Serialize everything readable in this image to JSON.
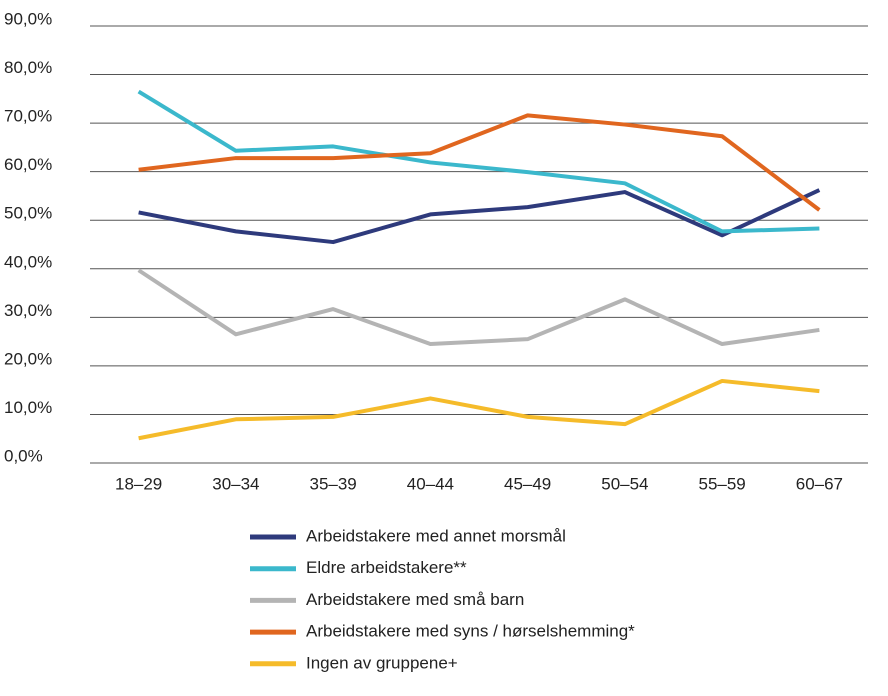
{
  "chart_data": {
    "type": "line",
    "categories": [
      "18–29",
      "30–34",
      "35–39",
      "40–44",
      "45–49",
      "50–54",
      "55–59",
      "60–67"
    ],
    "series": [
      {
        "name": "Arbeidstakere med annet morsmål",
        "color": "#2e3a7c",
        "values": [
          51.6,
          47.7,
          45.5,
          51.2,
          52.7,
          55.8,
          46.9,
          56.2
        ]
      },
      {
        "name": "Eldre arbeidstakere**",
        "color": "#3bb8cc",
        "values": [
          76.5,
          64.3,
          65.2,
          61.9,
          59.9,
          57.6,
          47.7,
          48.3
        ]
      },
      {
        "name": "Arbeidstakere med små barn",
        "color": "#b4b4b4",
        "values": [
          39.7,
          26.5,
          31.7,
          24.5,
          25.5,
          33.7,
          24.5,
          27.4
        ]
      },
      {
        "name": "Arbeidstakere med syns / hørselshemming*",
        "color": "#e0661f",
        "values": [
          60.4,
          62.8,
          62.8,
          63.8,
          71.6,
          69.7,
          67.3,
          52.1
        ]
      },
      {
        "name": "Ingen av gruppene+",
        "color": "#f5bb2a",
        "values": [
          5.1,
          9.0,
          9.5,
          13.3,
          9.5,
          8.0,
          16.9,
          14.8
        ]
      }
    ],
    "ylim": [
      0,
      90
    ],
    "yticks": [
      {
        "value": 0,
        "label": "0,0%"
      },
      {
        "value": 10,
        "label": "10,0%"
      },
      {
        "value": 20,
        "label": "20,0%"
      },
      {
        "value": 30,
        "label": "30,0%"
      },
      {
        "value": 40,
        "label": "40,0%"
      },
      {
        "value": 50,
        "label": "50,0%"
      },
      {
        "value": 60,
        "label": "60,0%"
      },
      {
        "value": 70,
        "label": "70,0%"
      },
      {
        "value": 80,
        "label": "80,0%"
      },
      {
        "value": 90,
        "label": "90,0%"
      }
    ],
    "grid": true
  }
}
